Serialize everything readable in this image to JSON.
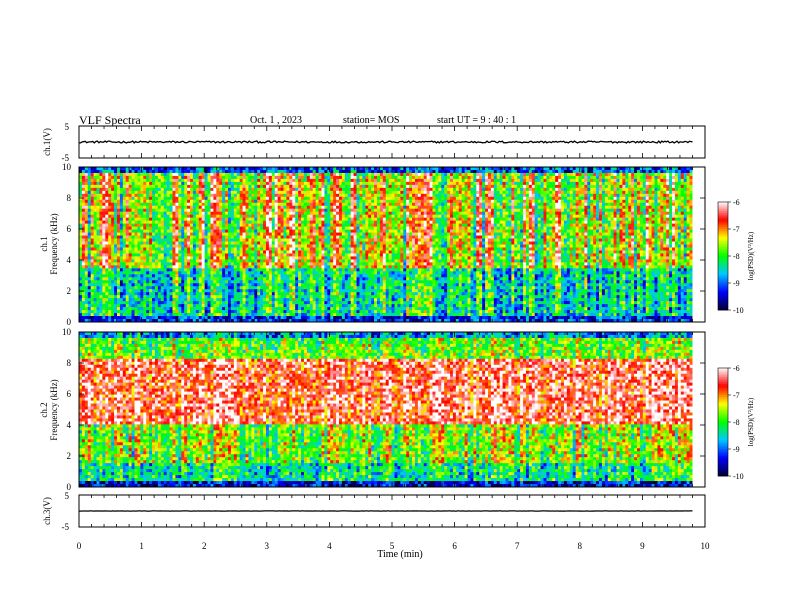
{
  "header": {
    "title": "VLF Spectra",
    "date": "Oct. 1 , 2023",
    "station": "station= MOS",
    "start": "start UT =  9 : 40 : 1"
  },
  "chart_data": [
    {
      "id": "ch1-waveform",
      "type": "line",
      "ylabel": "ch.1(V)",
      "ylim": [
        -5,
        5
      ],
      "y_ticks": [
        "5",
        "-5"
      ],
      "xlim": [
        0,
        10
      ],
      "trace_level": 0,
      "trace_end_min": 9.8
    },
    {
      "id": "ch1-spectrogram",
      "type": "heatmap",
      "ylabel_channel": "ch.1",
      "ylabel": "Frequency (kHz)",
      "ylim": [
        0,
        10
      ],
      "y_ticks": [
        "0",
        "2",
        "4",
        "6",
        "8",
        "10"
      ],
      "xlim": [
        0,
        10
      ],
      "data_end_min": 9.8,
      "colorbar": {
        "label": "log(PSD)(V²/Hz)",
        "range": [
          -10,
          -6
        ],
        "ticks": [
          "-6",
          "-7",
          "-8",
          "-9",
          "-10"
        ]
      }
    },
    {
      "id": "ch2-spectrogram",
      "type": "heatmap",
      "ylabel_channel": "ch.2",
      "ylabel": "Frequency (kHz)",
      "ylim": [
        0,
        10
      ],
      "y_ticks": [
        "0",
        "2",
        "4",
        "6",
        "8",
        "10"
      ],
      "xlim": [
        0,
        10
      ],
      "data_end_min": 9.8,
      "colorbar": {
        "label": "log(PSD)(V²/Hz)",
        "range": [
          -10,
          -6
        ],
        "ticks": [
          "-6",
          "-7",
          "-8",
          "-9",
          "-10"
        ]
      }
    },
    {
      "id": "ch3-waveform",
      "type": "line",
      "ylabel": "ch.3(V)",
      "ylim": [
        -5,
        5
      ],
      "y_ticks": [
        "5",
        "-5"
      ],
      "xlim": [
        0,
        10
      ],
      "trace_level": 0,
      "trace_end_min": 9.8,
      "xlabel": "Time (min)",
      "x_ticks": [
        "0",
        "1",
        "2",
        "3",
        "4",
        "5",
        "6",
        "7",
        "8",
        "9",
        "10"
      ]
    }
  ],
  "colors": {
    "spectrum": [
      "#000033",
      "#0000ff",
      "#00c8ff",
      "#00ff00",
      "#ffff00",
      "#ff0000",
      "#ffffff"
    ]
  }
}
